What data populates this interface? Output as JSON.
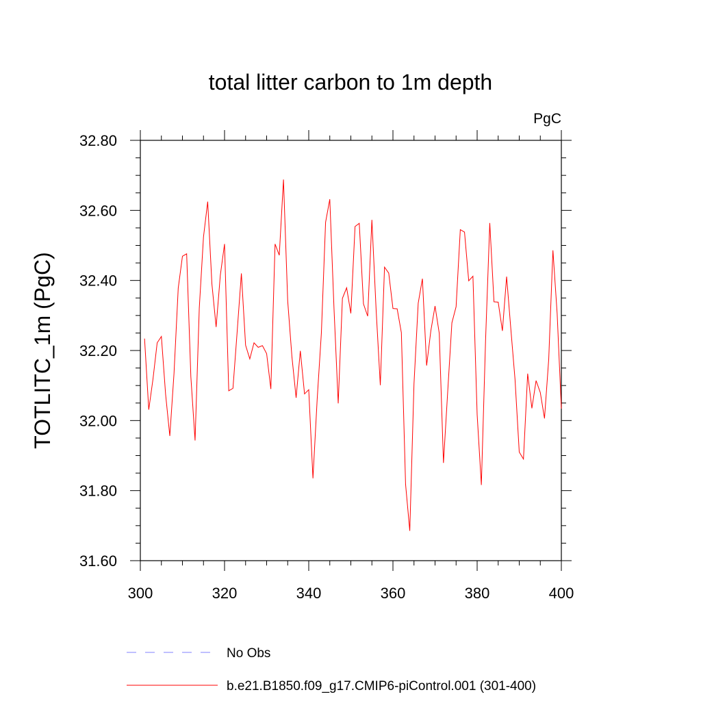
{
  "chart_data": {
    "type": "line",
    "title": "total litter carbon to 1m depth",
    "units": "PgC",
    "xlabel": "",
    "ylabel": "TOTLITC_1m  (PgC)",
    "xlim": [
      300,
      400
    ],
    "ylim": [
      31.6,
      32.8
    ],
    "x_ticks": [
      "300",
      "320",
      "340",
      "360",
      "380",
      "400"
    ],
    "y_ticks": [
      "31.60",
      "31.80",
      "32.00",
      "32.20",
      "32.40",
      "32.60",
      "32.80"
    ],
    "grid": false,
    "legend_position": "bottom",
    "series": [
      {
        "name": "No Obs",
        "color": "#8080ff",
        "style": "dashed",
        "x": [],
        "values": []
      },
      {
        "name": "b.e21.B1850.f09_g17.CMIP6-piControl.001 (301-400)",
        "color": "#ff0000",
        "style": "solid",
        "x": [
          301,
          302,
          303,
          304,
          305,
          306,
          307,
          308,
          309,
          310,
          311,
          312,
          313,
          314,
          315,
          316,
          317,
          318,
          319,
          320,
          321,
          322,
          323,
          324,
          325,
          326,
          327,
          328,
          329,
          330,
          331,
          332,
          333,
          334,
          335,
          336,
          337,
          338,
          339,
          340,
          341,
          342,
          343,
          344,
          345,
          346,
          347,
          348,
          349,
          350,
          351,
          352,
          353,
          354,
          355,
          356,
          357,
          358,
          359,
          360,
          361,
          362,
          363,
          364,
          365,
          366,
          367,
          368,
          369,
          370,
          371,
          372,
          373,
          374,
          375,
          376,
          377,
          378,
          379,
          380,
          381,
          382,
          383,
          384,
          385,
          386,
          387,
          388,
          389,
          390,
          391,
          392,
          393,
          394,
          395,
          396,
          397,
          398,
          399,
          400
        ],
        "values": [
          32.234,
          32.031,
          32.118,
          32.222,
          32.24,
          32.075,
          31.956,
          32.135,
          32.378,
          32.469,
          32.476,
          32.125,
          31.943,
          32.321,
          32.524,
          32.625,
          32.39,
          32.267,
          32.415,
          32.504,
          32.085,
          32.092,
          32.254,
          32.42,
          32.215,
          32.176,
          32.222,
          32.209,
          32.214,
          32.191,
          32.09,
          32.504,
          32.472,
          32.688,
          32.342,
          32.183,
          32.065,
          32.199,
          32.076,
          32.088,
          31.835,
          32.06,
          32.25,
          32.566,
          32.632,
          32.32,
          32.049,
          32.349,
          32.379,
          32.306,
          32.554,
          32.563,
          32.333,
          32.298,
          32.573,
          32.317,
          32.101,
          32.438,
          32.421,
          32.32,
          32.319,
          32.251,
          31.818,
          31.685,
          32.105,
          32.335,
          32.405,
          32.157,
          32.256,
          32.327,
          32.249,
          31.879,
          32.081,
          32.279,
          32.325,
          32.545,
          32.538,
          32.399,
          32.412,
          32.017,
          31.816,
          32.229,
          32.564,
          32.339,
          32.338,
          32.256,
          32.411,
          32.262,
          32.117,
          31.91,
          31.89,
          32.134,
          32.035,
          32.114,
          32.08,
          32.006,
          32.175,
          32.486,
          32.306,
          32.034
        ]
      }
    ]
  }
}
